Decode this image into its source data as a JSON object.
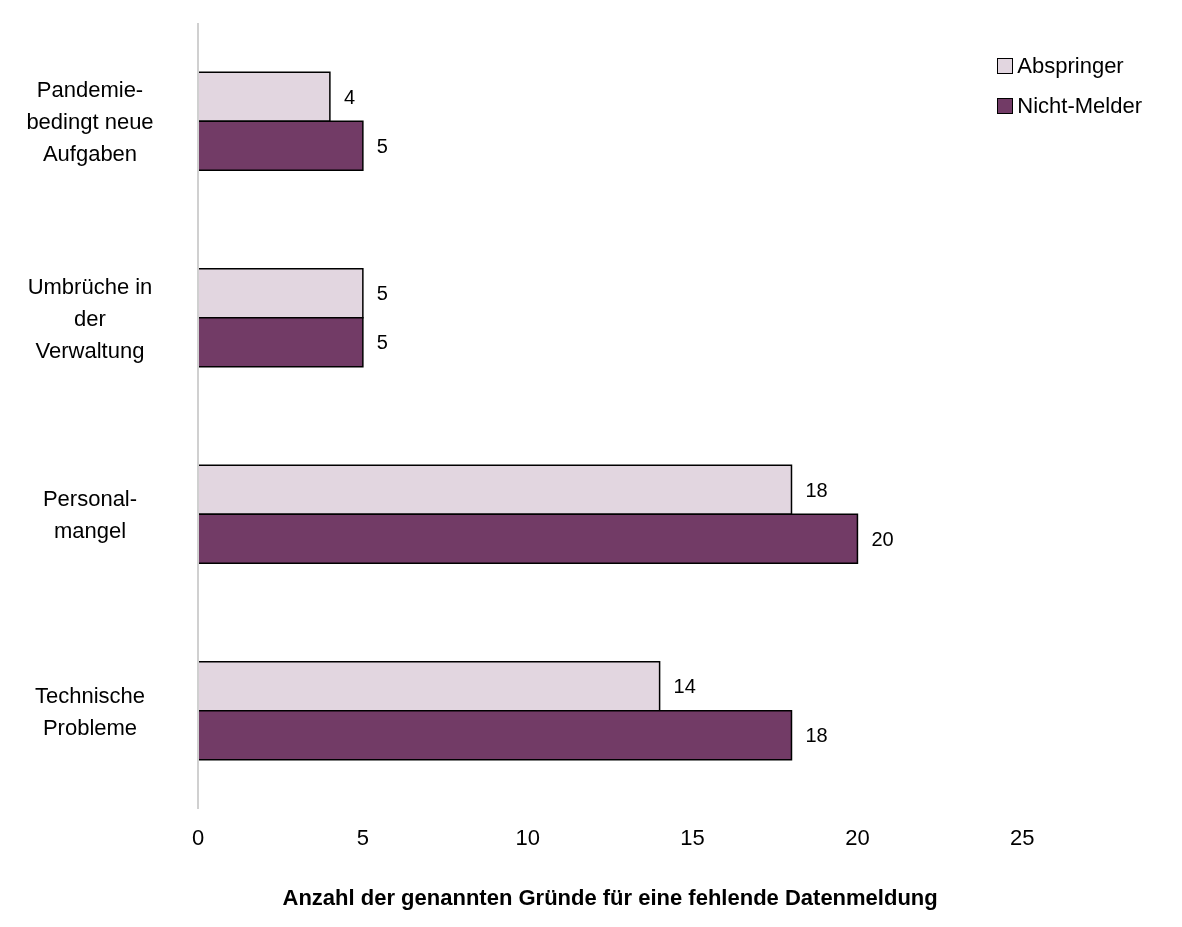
{
  "chart_data": {
    "type": "bar",
    "orientation": "horizontal",
    "xlabel": "Anzahl der genannten Gründe für eine fehlende Datenmeldung",
    "categories": [
      "Pandemie-bedingt neue Aufgaben",
      "Umbrüche in der Verwaltung",
      "Personal-mangel",
      "Technische Probleme"
    ],
    "series": [
      {
        "name": "Abspringer",
        "color": "#e2d6e0",
        "values": [
          4,
          5,
          18,
          14
        ]
      },
      {
        "name": "Nicht-Melder",
        "color": "#723b66",
        "values": [
          5,
          5,
          20,
          18
        ]
      }
    ],
    "xlim": [
      0,
      25
    ],
    "xticks": [
      0,
      5,
      10,
      15,
      20,
      25
    ],
    "grid": false,
    "legend": "top right",
    "data_labels": true
  }
}
